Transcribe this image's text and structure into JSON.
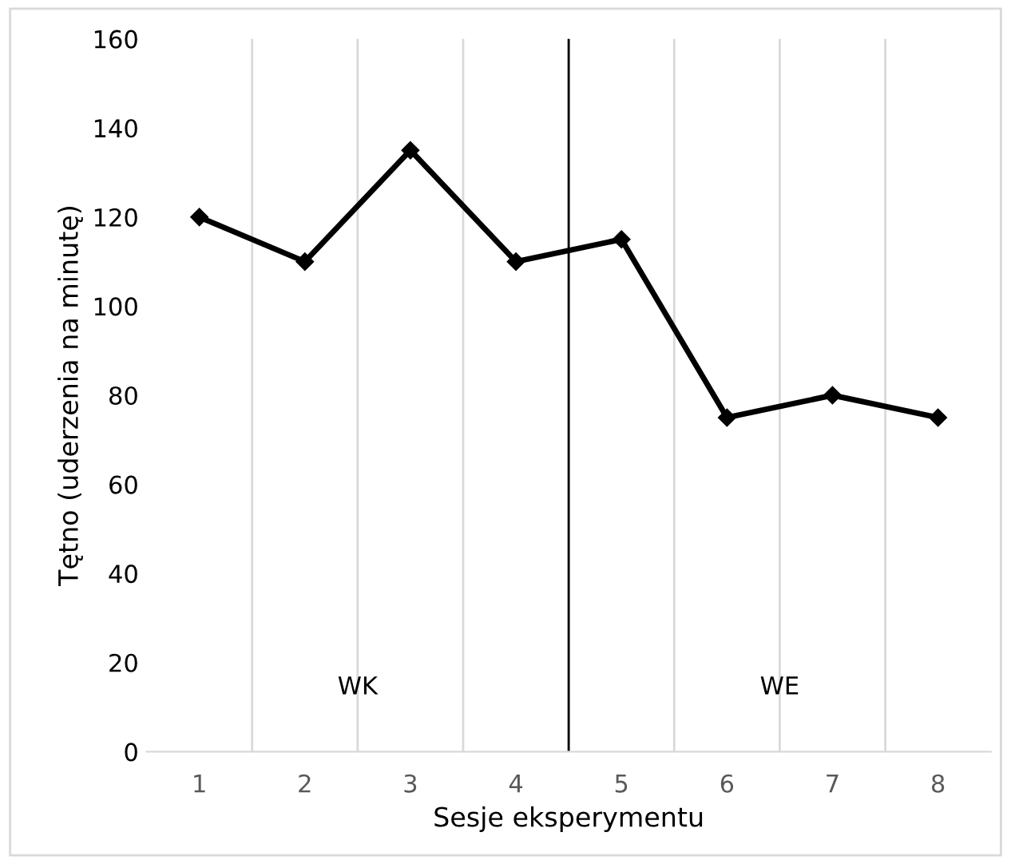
{
  "chart_data": {
    "type": "line",
    "xlabel": "Sesje eksperymentu",
    "ylabel": "Tętno (uderzenia na minutę)",
    "x": [
      1,
      2,
      3,
      4,
      5,
      6,
      7,
      8
    ],
    "xlim": [
      0.5,
      8.5
    ],
    "xticks": [
      1,
      2,
      3,
      4,
      5,
      6,
      7,
      8
    ],
    "ref_lines": [
      {
        "axis": "x",
        "value": 4.5,
        "color": "#000000"
      }
    ],
    "series": [
      {
        "color": "#000000",
        "values": [
          120,
          110,
          135,
          110,
          115,
          75,
          80,
          75
        ]
      }
    ],
    "ylim": [
      0,
      160
    ],
    "yticks": [
      0,
      20,
      40,
      60,
      80,
      100,
      120,
      140,
      160
    ],
    "grid": "x",
    "marker": "diamond",
    "line_style": "solid",
    "annotations": [
      "WK",
      "WE"
    ]
  }
}
